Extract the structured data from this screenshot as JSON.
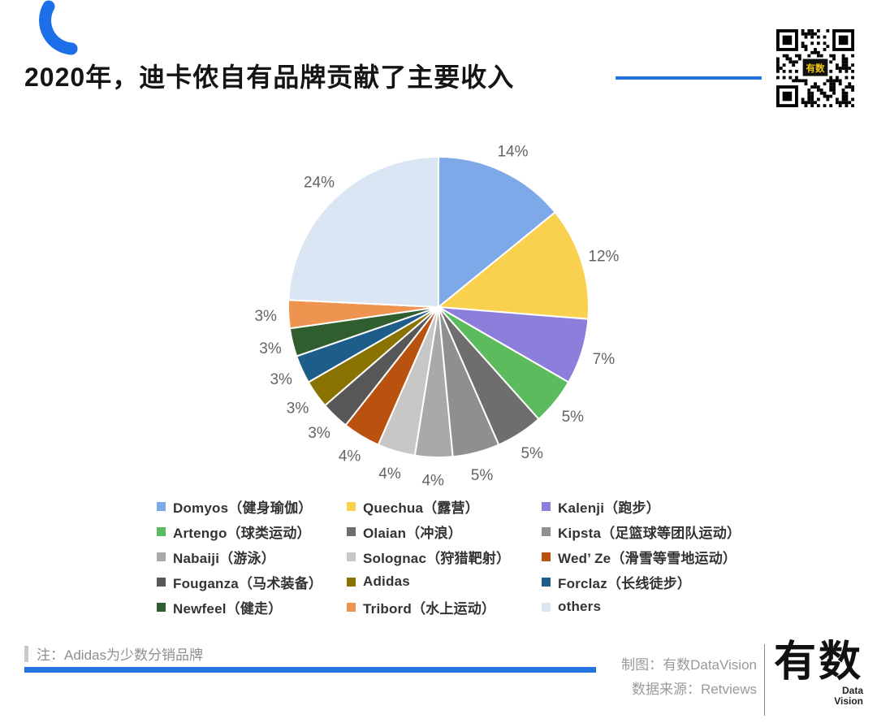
{
  "accent_blue": "#2273DE",
  "header": {
    "title": "2020年，迪卡侬自有品牌贡献了主要收入"
  },
  "qr": {
    "label": "有数"
  },
  "chart_data": {
    "type": "pie",
    "title": "2020年，迪卡侬自有品牌贡献了主要收入",
    "unit": "%",
    "start_angle_deg": -90,
    "direction": "clockwise",
    "legend_position": "bottom",
    "series": [
      {
        "label": "Domyos（健身瑜伽）",
        "value": 14,
        "color": "#7DA9E8"
      },
      {
        "label": "Quechua（露营）",
        "value": 12,
        "color": "#F9D14E"
      },
      {
        "label": "Kalenji（跑步）",
        "value": 7,
        "color": "#8C7FDC"
      },
      {
        "label": "Artengo（球类运动）",
        "value": 5,
        "color": "#5CBB5C"
      },
      {
        "label": "Olaian（冲浪）",
        "value": 5,
        "color": "#6E6E6E"
      },
      {
        "label": "Kipsta（足篮球等团队运动）",
        "value": 5,
        "color": "#8F8F8F"
      },
      {
        "label": "Nabaiji（游泳）",
        "value": 4,
        "color": "#A9A9A9"
      },
      {
        "label": "Solognac（狩猎靶射）",
        "value": 4,
        "color": "#C7C7C7"
      },
      {
        "label": "Wed’ Ze（滑雪等雪地运动）",
        "value": 4,
        "color": "#BA520F"
      },
      {
        "label": "Fouganza（马术装备）",
        "value": 3,
        "color": "#575757"
      },
      {
        "label": "Adidas",
        "value": 3,
        "color": "#8A7200"
      },
      {
        "label": "Forclaz（长线徒步）",
        "value": 3,
        "color": "#1E5C8A"
      },
      {
        "label": "Newfeel（健走）",
        "value": 3,
        "color": "#315E2F"
      },
      {
        "label": "Tribord（水上运动）",
        "value": 3,
        "color": "#EF9350"
      },
      {
        "label": "others",
        "value": 24,
        "color": "#DAE6F4"
      }
    ]
  },
  "footer": {
    "note": "注：Adidas为少数分销品牌",
    "credit_line1": "制图：有数DataVision",
    "credit_line2": "数据来源：Retviews",
    "logo_cn": "有数",
    "logo_en1": "Data",
    "logo_en2": "Vision"
  }
}
